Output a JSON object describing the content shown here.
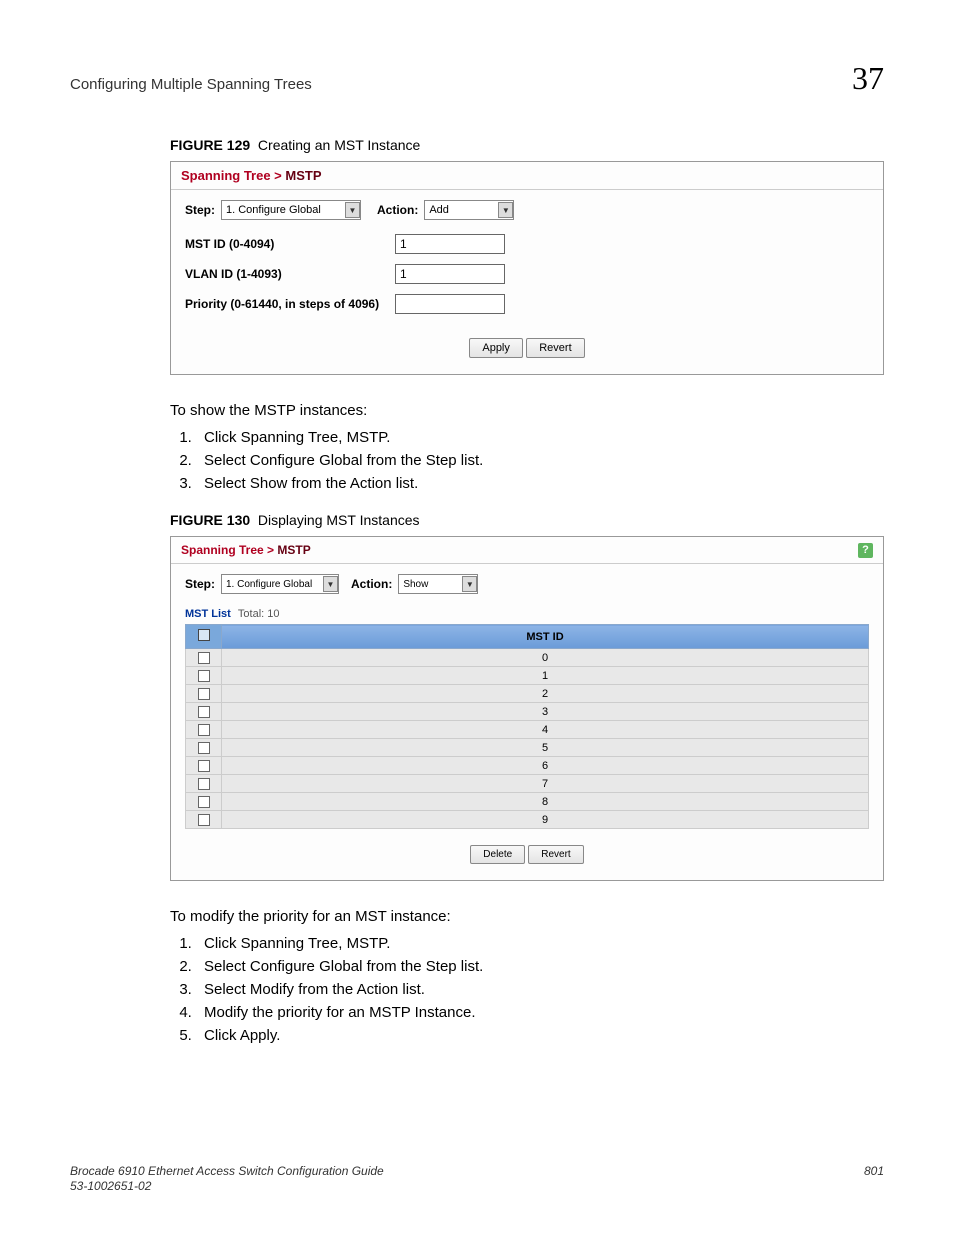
{
  "header": {
    "title": "Configuring Multiple Spanning Trees",
    "chapter": "37"
  },
  "figure129": {
    "caption_label": "FIGURE 129",
    "caption_text": "Creating an MST Instance",
    "breadcrumb_prefix": "Spanning Tree > ",
    "breadcrumb_leaf": "MSTP",
    "step_label": "Step:",
    "step_value": "1. Configure Global",
    "action_label": "Action:",
    "action_value": "Add",
    "field1_label": "MST ID (0-4094)",
    "field1_value": "1",
    "field2_label": "VLAN ID (1-4093)",
    "field2_value": "1",
    "field3_label": "Priority (0-61440, in steps of 4096)",
    "field3_value": "",
    "apply_btn": "Apply",
    "revert_btn": "Revert"
  },
  "text1": {
    "intro": "To show the MSTP instances:",
    "steps": [
      "Click Spanning Tree, MSTP.",
      "Select Configure Global from the Step list.",
      "Select Show from the Action list."
    ]
  },
  "figure130": {
    "caption_label": "FIGURE 130",
    "caption_text": "Displaying MST Instances",
    "breadcrumb_prefix": "Spanning Tree > ",
    "breadcrumb_leaf": "MSTP",
    "step_label": "Step:",
    "step_value": "1. Configure Global",
    "action_label": "Action:",
    "action_value": "Show",
    "list_title": "MST List",
    "total_label": "Total:",
    "total_value": "10",
    "col_header": "MST ID",
    "rows": [
      "0",
      "1",
      "2",
      "3",
      "4",
      "5",
      "6",
      "7",
      "8",
      "9"
    ],
    "delete_btn": "Delete",
    "revert_btn": "Revert"
  },
  "text2": {
    "intro": "To modify the priority for an MST instance:",
    "steps": [
      "Click Spanning Tree, MSTP.",
      "Select Configure Global from the Step list.",
      "Select Modify from the Action list.",
      "Modify the priority for an MSTP Instance.",
      "Click Apply."
    ]
  },
  "footer": {
    "guide": "Brocade 6910 Ethernet Access Switch Configuration Guide",
    "partno": "53-1002651-02",
    "page": "801"
  }
}
